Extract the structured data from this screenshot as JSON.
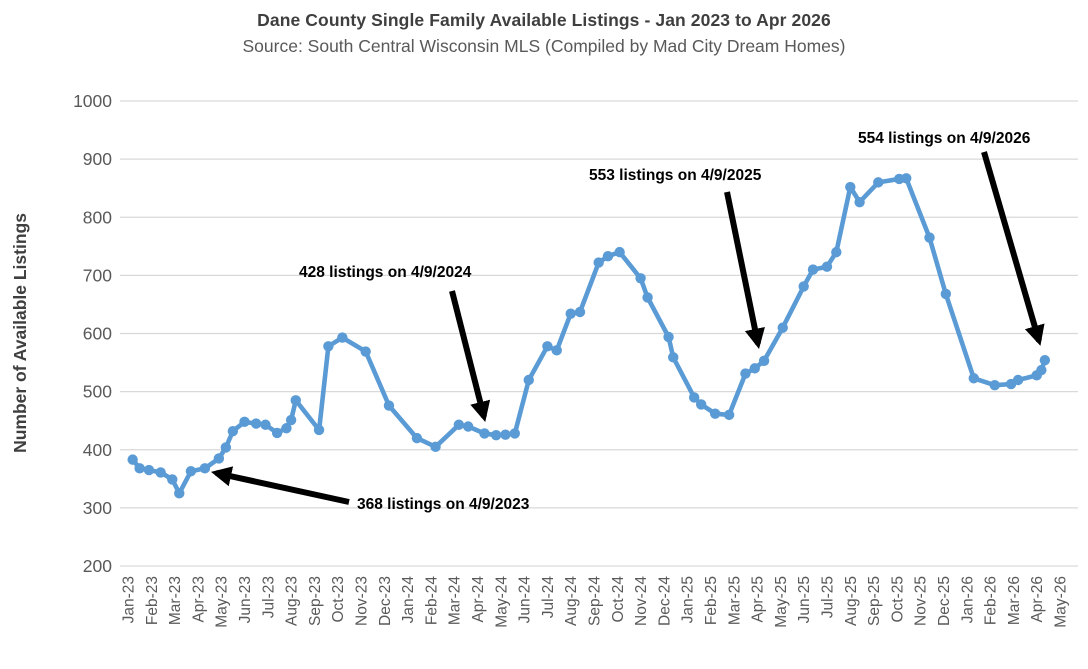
{
  "header": {
    "title": "Dane County Single Family Available Listings - Jan 2023 to Apr 2026",
    "subtitle": "Source: South Central Wisconsin MLS (Compiled by Mad City Dream Homes)"
  },
  "chart_data": {
    "type": "line",
    "title": "Dane County Single Family Available Listings - Jan 2023 to Apr 2026",
    "subtitle": "Source: South Central Wisconsin MLS (Compiled by Mad City Dream Homes)",
    "xlabel": "",
    "ylabel": "Number of Available Listings",
    "ylim": [
      200,
      1000
    ],
    "y_ticks": [
      200,
      300,
      400,
      500,
      600,
      700,
      800,
      900,
      1000
    ],
    "grid": "horizontal",
    "legend": "none",
    "x_tick_labels": [
      "Jan-23",
      "Feb-23",
      "Mar-23",
      "Apr-23",
      "May-23",
      "Jun-23",
      "Jul-23",
      "Aug-23",
      "Sep-23",
      "Oct-23",
      "Nov-23",
      "Dec-23",
      "Jan-24",
      "Feb-24",
      "Mar-24",
      "Apr-24",
      "May-24",
      "Jun-24",
      "Jul-24",
      "Aug-24",
      "Sep-24",
      "Oct-24",
      "Nov-24",
      "Dec-24",
      "Jan-25",
      "Feb-25",
      "Mar-25",
      "Apr-25",
      "May-25",
      "Jun-25",
      "Jul-25",
      "Aug-25",
      "Sep-25",
      "Oct-25",
      "Nov-25",
      "Dec-25",
      "Jan-26",
      "Feb-26",
      "Mar-26",
      "Apr-26",
      "May-26"
    ],
    "x_unit": "months since Jan-2023 (fractional month position)",
    "series": [
      {
        "name": "Available Listings",
        "color": "#5B9BD5",
        "points": [
          [
            0.2,
            383
          ],
          [
            0.5,
            368
          ],
          [
            0.9,
            365
          ],
          [
            1.4,
            361
          ],
          [
            1.9,
            349
          ],
          [
            2.2,
            325
          ],
          [
            2.7,
            363
          ],
          [
            3.3,
            368
          ],
          [
            3.9,
            385
          ],
          [
            4.2,
            404
          ],
          [
            4.5,
            432
          ],
          [
            5.0,
            448
          ],
          [
            5.5,
            445
          ],
          [
            5.9,
            443
          ],
          [
            6.4,
            429
          ],
          [
            6.8,
            437
          ],
          [
            7.0,
            451
          ],
          [
            7.2,
            485
          ],
          [
            8.2,
            434
          ],
          [
            8.6,
            578
          ],
          [
            9.2,
            593
          ],
          [
            10.2,
            569
          ],
          [
            11.2,
            476
          ],
          [
            12.4,
            420
          ],
          [
            13.2,
            405
          ],
          [
            14.2,
            443
          ],
          [
            14.6,
            440
          ],
          [
            15.3,
            428
          ],
          [
            15.8,
            425
          ],
          [
            16.2,
            426
          ],
          [
            16.6,
            428
          ],
          [
            17.2,
            520
          ],
          [
            18.0,
            578
          ],
          [
            18.4,
            571
          ],
          [
            19.0,
            634
          ],
          [
            19.4,
            637
          ],
          [
            20.2,
            722
          ],
          [
            20.6,
            733
          ],
          [
            21.1,
            740
          ],
          [
            22.0,
            695
          ],
          [
            22.3,
            662
          ],
          [
            23.2,
            594
          ],
          [
            23.4,
            559
          ],
          [
            24.3,
            490
          ],
          [
            24.6,
            478
          ],
          [
            25.2,
            462
          ],
          [
            25.8,
            460
          ],
          [
            26.5,
            531
          ],
          [
            26.9,
            540
          ],
          [
            27.3,
            553
          ],
          [
            28.1,
            610
          ],
          [
            29.0,
            681
          ],
          [
            29.4,
            710
          ],
          [
            30.0,
            715
          ],
          [
            30.4,
            740
          ],
          [
            31.0,
            852
          ],
          [
            31.4,
            826
          ],
          [
            32.2,
            860
          ],
          [
            33.1,
            866
          ],
          [
            33.4,
            867
          ],
          [
            34.4,
            765
          ],
          [
            35.1,
            668
          ],
          [
            36.3,
            523
          ],
          [
            37.2,
            511
          ],
          [
            37.9,
            513
          ],
          [
            38.2,
            520
          ],
          [
            39.0,
            528
          ],
          [
            39.2,
            537
          ],
          [
            39.35,
            554
          ]
        ]
      }
    ],
    "annotations": [
      {
        "text": "368 listings on 4/9/2023",
        "value": 368,
        "date": "4/9/2023",
        "target_point": [
          3.3,
          368
        ]
      },
      {
        "text": "428 listings on 4/9/2024",
        "value": 428,
        "date": "4/9/2024",
        "target_point": [
          15.3,
          428
        ]
      },
      {
        "text": "553 listings on 4/9/2025",
        "value": 553,
        "date": "4/9/2025",
        "target_point": [
          27.3,
          553
        ]
      },
      {
        "text": "554 listings on 4/9/2026",
        "value": 554,
        "date": "4/9/2026",
        "target_point": [
          39.35,
          554
        ]
      }
    ],
    "colors": {
      "line": "#5B9BD5",
      "gridline": "#d9d9d9",
      "axis_text": "#595959",
      "title_text": "#3f3f3f",
      "annotation_text": "#000000",
      "annotation_arrow": "#000000",
      "background": "#ffffff"
    }
  }
}
